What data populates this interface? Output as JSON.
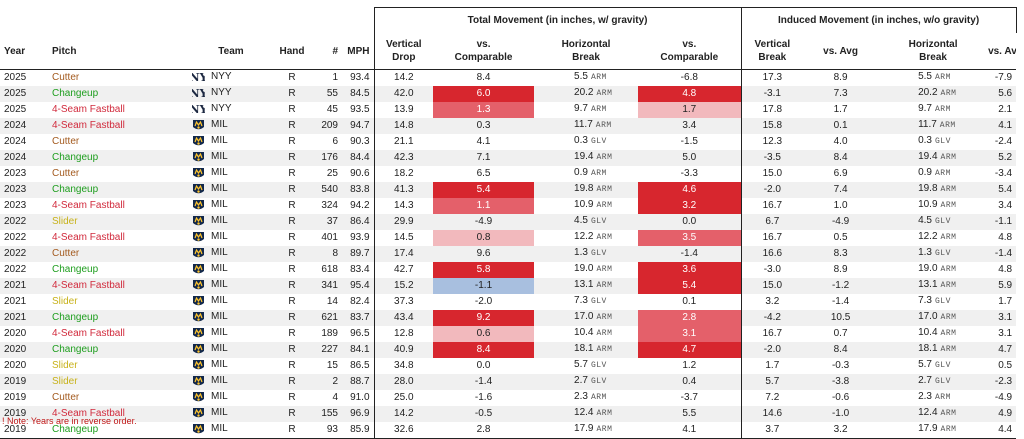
{
  "groups": {
    "total": "Total Movement (in inches, w/ gravity)",
    "induced": "Induced Movement (in inches, w/o gravity)"
  },
  "headers": {
    "year": "Year",
    "pitch": "Pitch",
    "team": "Team",
    "hand": "Hand",
    "num": "#",
    "mph": "MPH",
    "vert_drop_1": "Vertical",
    "vert_drop_2": "Drop",
    "vs_comp_1": "vs.",
    "vs_comp_2": "Comparable",
    "horiz_1": "Horizontal",
    "horiz_2": "Break",
    "vs_comp2_1": "vs.",
    "vs_comp2_2": "Comparable",
    "vert_break_1": "Vertical",
    "vert_break_2": "Break",
    "vs_avg": "vs. Avg",
    "horiz2_1": "Horizontal",
    "horiz2_2": "Break",
    "vs_avg2": "vs. Avg"
  },
  "colors": {
    "cutter": "#a35a1e",
    "changeup": "#1e9e1e",
    "fastball": "#d12a3c",
    "slider": "#c8b21a",
    "red_dark": "#d7262e",
    "red_mid": "#e4606a",
    "red_light": "#f2b9bd",
    "blue_light": "#a8bfdf"
  },
  "rows": [
    {
      "year": "2025",
      "pitch": "Cutter",
      "type": "cutter",
      "logo": "nyy-logo-icon",
      "team": "NYY",
      "hand": "R",
      "num": "1",
      "mph": "93.4",
      "vdrop": "14.2",
      "vcomp": "8.4",
      "vcomp_shade": "",
      "hb": "5.5",
      "hb_side": "ARM",
      "hcomp": "-6.8",
      "hcomp_shade": "",
      "ivb": "17.3",
      "ivb_avg": "8.9",
      "ihb": "5.5",
      "ihb_side": "ARM",
      "ihb_avg": "-7.9"
    },
    {
      "year": "2025",
      "pitch": "Changeup",
      "type": "changeup",
      "logo": "nyy-logo-icon",
      "team": "NYY",
      "hand": "R",
      "num": "55",
      "mph": "84.5",
      "vdrop": "42.0",
      "vcomp": "6.0",
      "vcomp_shade": "red_dark",
      "hb": "20.2",
      "hb_side": "ARM",
      "hcomp": "4.8",
      "hcomp_shade": "red_dark",
      "ivb": "-3.1",
      "ivb_avg": "7.3",
      "ihb": "20.2",
      "ihb_side": "ARM",
      "ihb_avg": "5.6"
    },
    {
      "year": "2025",
      "pitch": "4-Seam Fastball",
      "type": "fastball",
      "logo": "nyy-logo-icon",
      "team": "NYY",
      "hand": "R",
      "num": "45",
      "mph": "93.5",
      "vdrop": "13.9",
      "vcomp": "1.3",
      "vcomp_shade": "red_mid",
      "hb": "9.7",
      "hb_side": "ARM",
      "hcomp": "1.7",
      "hcomp_shade": "red_light",
      "ivb": "17.8",
      "ivb_avg": "1.7",
      "ihb": "9.7",
      "ihb_side": "ARM",
      "ihb_avg": "2.1"
    },
    {
      "year": "2024",
      "pitch": "4-Seam Fastball",
      "type": "fastball",
      "logo": "mil-logo-icon",
      "team": "MIL",
      "hand": "R",
      "num": "209",
      "mph": "94.7",
      "vdrop": "14.8",
      "vcomp": "0.3",
      "vcomp_shade": "",
      "hb": "11.7",
      "hb_side": "ARM",
      "hcomp": "3.4",
      "hcomp_shade": "",
      "ivb": "15.8",
      "ivb_avg": "0.1",
      "ihb": "11.7",
      "ihb_side": "ARM",
      "ihb_avg": "4.1"
    },
    {
      "year": "2024",
      "pitch": "Cutter",
      "type": "cutter",
      "logo": "mil-logo-icon",
      "team": "MIL",
      "hand": "R",
      "num": "6",
      "mph": "90.3",
      "vdrop": "21.1",
      "vcomp": "4.1",
      "vcomp_shade": "",
      "hb": "0.3",
      "hb_side": "GLV",
      "hcomp": "-1.5",
      "hcomp_shade": "",
      "ivb": "12.3",
      "ivb_avg": "4.0",
      "ihb": "0.3",
      "ihb_side": "GLV",
      "ihb_avg": "-2.4"
    },
    {
      "year": "2024",
      "pitch": "Changeup",
      "type": "changeup",
      "logo": "mil-logo-icon",
      "team": "MIL",
      "hand": "R",
      "num": "176",
      "mph": "84.4",
      "vdrop": "42.3",
      "vcomp": "7.1",
      "vcomp_shade": "",
      "hb": "19.4",
      "hb_side": "ARM",
      "hcomp": "5.0",
      "hcomp_shade": "",
      "ivb": "-3.5",
      "ivb_avg": "8.4",
      "ihb": "19.4",
      "ihb_side": "ARM",
      "ihb_avg": "5.2"
    },
    {
      "year": "2023",
      "pitch": "Cutter",
      "type": "cutter",
      "logo": "mil-logo-icon",
      "team": "MIL",
      "hand": "R",
      "num": "25",
      "mph": "90.6",
      "vdrop": "18.2",
      "vcomp": "6.5",
      "vcomp_shade": "",
      "hb": "0.9",
      "hb_side": "ARM",
      "hcomp": "-3.3",
      "hcomp_shade": "",
      "ivb": "15.0",
      "ivb_avg": "6.9",
      "ihb": "0.9",
      "ihb_side": "ARM",
      "ihb_avg": "-3.4"
    },
    {
      "year": "2023",
      "pitch": "Changeup",
      "type": "changeup",
      "logo": "mil-logo-icon",
      "team": "MIL",
      "hand": "R",
      "num": "540",
      "mph": "83.8",
      "vdrop": "41.3",
      "vcomp": "5.4",
      "vcomp_shade": "red_dark",
      "hb": "19.8",
      "hb_side": "ARM",
      "hcomp": "4.6",
      "hcomp_shade": "red_dark",
      "ivb": "-2.0",
      "ivb_avg": "7.4",
      "ihb": "19.8",
      "ihb_side": "ARM",
      "ihb_avg": "5.4"
    },
    {
      "year": "2023",
      "pitch": "4-Seam Fastball",
      "type": "fastball",
      "logo": "mil-logo-icon",
      "team": "MIL",
      "hand": "R",
      "num": "324",
      "mph": "94.2",
      "vdrop": "14.3",
      "vcomp": "1.1",
      "vcomp_shade": "red_mid",
      "hb": "10.9",
      "hb_side": "ARM",
      "hcomp": "3.2",
      "hcomp_shade": "red_dark",
      "ivb": "16.7",
      "ivb_avg": "1.0",
      "ihb": "10.9",
      "ihb_side": "ARM",
      "ihb_avg": "3.4"
    },
    {
      "year": "2022",
      "pitch": "Slider",
      "type": "slider",
      "logo": "mil-logo-icon",
      "team": "MIL",
      "hand": "R",
      "num": "37",
      "mph": "86.4",
      "vdrop": "29.9",
      "vcomp": "-4.9",
      "vcomp_shade": "",
      "hb": "4.5",
      "hb_side": "GLV",
      "hcomp": "0.0",
      "hcomp_shade": "",
      "ivb": "6.7",
      "ivb_avg": "-4.9",
      "ihb": "4.5",
      "ihb_side": "GLV",
      "ihb_avg": "-1.1"
    },
    {
      "year": "2022",
      "pitch": "4-Seam Fastball",
      "type": "fastball",
      "logo": "mil-logo-icon",
      "team": "MIL",
      "hand": "R",
      "num": "401",
      "mph": "93.9",
      "vdrop": "14.5",
      "vcomp": "0.8",
      "vcomp_shade": "red_light",
      "hb": "12.2",
      "hb_side": "ARM",
      "hcomp": "3.5",
      "hcomp_shade": "red_mid",
      "ivb": "16.7",
      "ivb_avg": "0.5",
      "ihb": "12.2",
      "ihb_side": "ARM",
      "ihb_avg": "4.8"
    },
    {
      "year": "2022",
      "pitch": "Cutter",
      "type": "cutter",
      "logo": "mil-logo-icon",
      "team": "MIL",
      "hand": "R",
      "num": "8",
      "mph": "89.7",
      "vdrop": "17.4",
      "vcomp": "9.6",
      "vcomp_shade": "",
      "hb": "1.3",
      "hb_side": "GLV",
      "hcomp": "-1.4",
      "hcomp_shade": "",
      "ivb": "16.6",
      "ivb_avg": "8.3",
      "ihb": "1.3",
      "ihb_side": "GLV",
      "ihb_avg": "-1.4"
    },
    {
      "year": "2022",
      "pitch": "Changeup",
      "type": "changeup",
      "logo": "mil-logo-icon",
      "team": "MIL",
      "hand": "R",
      "num": "618",
      "mph": "83.4",
      "vdrop": "42.7",
      "vcomp": "5.8",
      "vcomp_shade": "red_dark",
      "hb": "19.0",
      "hb_side": "ARM",
      "hcomp": "3.6",
      "hcomp_shade": "red_dark",
      "ivb": "-3.0",
      "ivb_avg": "8.9",
      "ihb": "19.0",
      "ihb_side": "ARM",
      "ihb_avg": "4.8"
    },
    {
      "year": "2021",
      "pitch": "4-Seam Fastball",
      "type": "fastball",
      "logo": "mil-logo-icon",
      "team": "MIL",
      "hand": "R",
      "num": "341",
      "mph": "95.4",
      "vdrop": "15.2",
      "vcomp": "-1.1",
      "vcomp_shade": "blue_light",
      "hb": "13.1",
      "hb_side": "ARM",
      "hcomp": "5.4",
      "hcomp_shade": "red_dark",
      "ivb": "15.0",
      "ivb_avg": "-1.2",
      "ihb": "13.1",
      "ihb_side": "ARM",
      "ihb_avg": "5.9"
    },
    {
      "year": "2021",
      "pitch": "Slider",
      "type": "slider",
      "logo": "mil-logo-icon",
      "team": "MIL",
      "hand": "R",
      "num": "14",
      "mph": "82.4",
      "vdrop": "37.3",
      "vcomp": "-2.0",
      "vcomp_shade": "",
      "hb": "7.3",
      "hb_side": "GLV",
      "hcomp": "0.1",
      "hcomp_shade": "",
      "ivb": "3.2",
      "ivb_avg": "-1.4",
      "ihb": "7.3",
      "ihb_side": "GLV",
      "ihb_avg": "1.7"
    },
    {
      "year": "2021",
      "pitch": "Changeup",
      "type": "changeup",
      "logo": "mil-logo-icon",
      "team": "MIL",
      "hand": "R",
      "num": "621",
      "mph": "83.7",
      "vdrop": "43.4",
      "vcomp": "9.2",
      "vcomp_shade": "red_dark",
      "hb": "17.0",
      "hb_side": "ARM",
      "hcomp": "2.8",
      "hcomp_shade": "red_mid",
      "ivb": "-4.2",
      "ivb_avg": "10.5",
      "ihb": "17.0",
      "ihb_side": "ARM",
      "ihb_avg": "3.1"
    },
    {
      "year": "2020",
      "pitch": "4-Seam Fastball",
      "type": "fastball",
      "logo": "mil-logo-icon",
      "team": "MIL",
      "hand": "R",
      "num": "189",
      "mph": "96.5",
      "vdrop": "12.8",
      "vcomp": "0.6",
      "vcomp_shade": "red_light",
      "hb": "10.4",
      "hb_side": "ARM",
      "hcomp": "3.1",
      "hcomp_shade": "red_mid",
      "ivb": "16.7",
      "ivb_avg": "0.7",
      "ihb": "10.4",
      "ihb_side": "ARM",
      "ihb_avg": "3.1"
    },
    {
      "year": "2020",
      "pitch": "Changeup",
      "type": "changeup",
      "logo": "mil-logo-icon",
      "team": "MIL",
      "hand": "R",
      "num": "227",
      "mph": "84.1",
      "vdrop": "40.9",
      "vcomp": "8.4",
      "vcomp_shade": "red_dark",
      "hb": "18.1",
      "hb_side": "ARM",
      "hcomp": "4.7",
      "hcomp_shade": "red_dark",
      "ivb": "-2.0",
      "ivb_avg": "8.4",
      "ihb": "18.1",
      "ihb_side": "ARM",
      "ihb_avg": "4.7"
    },
    {
      "year": "2020",
      "pitch": "Slider",
      "type": "slider",
      "logo": "mil-logo-icon",
      "team": "MIL",
      "hand": "R",
      "num": "15",
      "mph": "86.5",
      "vdrop": "34.8",
      "vcomp": "0.0",
      "vcomp_shade": "",
      "hb": "5.7",
      "hb_side": "GLV",
      "hcomp": "1.2",
      "hcomp_shade": "",
      "ivb": "1.7",
      "ivb_avg": "-0.3",
      "ihb": "5.7",
      "ihb_side": "GLV",
      "ihb_avg": "0.5"
    },
    {
      "year": "2019",
      "pitch": "Slider",
      "type": "slider",
      "logo": "mil-logo-icon",
      "team": "MIL",
      "hand": "R",
      "num": "2",
      "mph": "88.7",
      "vdrop": "28.0",
      "vcomp": "-1.4",
      "vcomp_shade": "",
      "hb": "2.7",
      "hb_side": "GLV",
      "hcomp": "0.4",
      "hcomp_shade": "",
      "ivb": "5.7",
      "ivb_avg": "-3.8",
      "ihb": "2.7",
      "ihb_side": "GLV",
      "ihb_avg": "-2.3"
    },
    {
      "year": "2019",
      "pitch": "Cutter",
      "type": "cutter",
      "logo": "mil-logo-icon",
      "team": "MIL",
      "hand": "R",
      "num": "4",
      "mph": "91.0",
      "vdrop": "25.0",
      "vcomp": "-1.6",
      "vcomp_shade": "",
      "hb": "2.3",
      "hb_side": "ARM",
      "hcomp": "-3.7",
      "hcomp_shade": "",
      "ivb": "7.2",
      "ivb_avg": "-0.6",
      "ihb": "2.3",
      "ihb_side": "ARM",
      "ihb_avg": "-4.9"
    },
    {
      "year": "2019",
      "pitch": "4-Seam Fastball",
      "type": "fastball",
      "logo": "mil-logo-icon",
      "team": "MIL",
      "hand": "R",
      "num": "155",
      "mph": "96.9",
      "vdrop": "14.2",
      "vcomp": "-0.5",
      "vcomp_shade": "",
      "hb": "12.4",
      "hb_side": "ARM",
      "hcomp": "5.5",
      "hcomp_shade": "",
      "ivb": "14.6",
      "ivb_avg": "-1.0",
      "ihb": "12.4",
      "ihb_side": "ARM",
      "ihb_avg": "4.9"
    },
    {
      "year": "2019",
      "pitch": "Changeup",
      "type": "changeup",
      "logo": "mil-logo-icon",
      "team": "MIL",
      "hand": "R",
      "num": "93",
      "mph": "85.9",
      "vdrop": "32.6",
      "vcomp": "2.8",
      "vcomp_shade": "",
      "hb": "17.9",
      "hb_side": "ARM",
      "hcomp": "4.1",
      "hcomp_shade": "",
      "ivb": "3.7",
      "ivb_avg": "3.2",
      "ihb": "17.9",
      "ihb_side": "ARM",
      "ihb_avg": "4.4"
    }
  ],
  "note": "! Note: Years are in reverse order."
}
